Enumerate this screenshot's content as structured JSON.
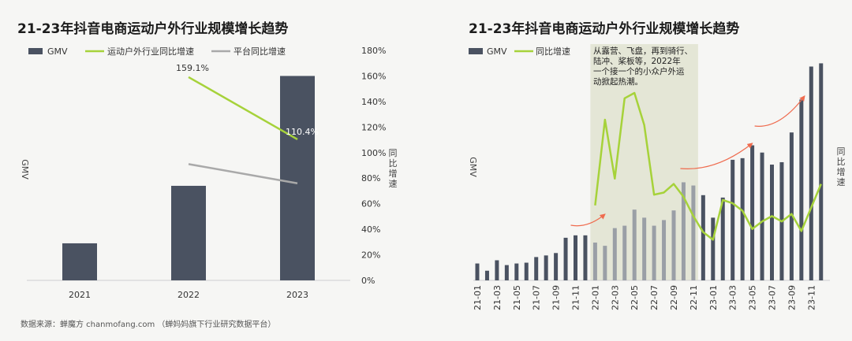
{
  "left": {
    "title": "21-23年抖音电商运动户外行业规模增长趋势",
    "legend": {
      "gmv": "GMV",
      "industry": "运动户外行业同比增速",
      "platform": "平台同比增速"
    },
    "ylabel_left": "GMV",
    "ylabel_right": "同比增速"
  },
  "right": {
    "title": "21-23年抖音电商运动户外行业规模增长趋势",
    "legend": {
      "gmv": "GMV",
      "growth": "同比增速"
    },
    "ylabel_left": "GMV",
    "ylabel_right": "同比增速",
    "annotation": [
      "从露营、飞盘，再到骑行、",
      "陆冲、桨板等，2022年",
      "一个接一个的小众户外运",
      "动掀起热潮。"
    ]
  },
  "source": "数据来源：蝉魔方 chanmofang.com （蝉妈妈旗下行业研究数据平台）",
  "colors": {
    "bar": "#4a5261",
    "industry_line": "#a6d23a",
    "platform_line": "#a9a9a9",
    "bar_faded": "#9a9fa6",
    "arrow": "#ef6b4e",
    "highlight": "#e4e6d6"
  },
  "chart_data": [
    {
      "type": "bar",
      "categories": [
        "2021",
        "2022",
        "2023"
      ],
      "series": [
        {
          "name": "GMV",
          "type": "bar",
          "values": [
            29,
            74,
            160
          ]
        },
        {
          "name": "运动户外行业同比增速",
          "type": "line",
          "axis": "right",
          "values": [
            null,
            159.1,
            110.4
          ]
        },
        {
          "name": "平台同比增速",
          "type": "line",
          "axis": "right",
          "values": [
            null,
            91,
            76
          ]
        }
      ],
      "y2_ticks": [
        "0%",
        "20%",
        "40%",
        "60%",
        "80%",
        "100%",
        "120%",
        "140%",
        "160%",
        "180%"
      ],
      "y2lim": [
        0,
        180
      ],
      "data_labels": [
        "159.1%",
        "110.4%"
      ]
    },
    {
      "type": "bar",
      "categories": [
        "21-01",
        "21-02",
        "21-03",
        "21-04",
        "21-05",
        "21-06",
        "21-07",
        "21-08",
        "21-09",
        "21-10",
        "21-11",
        "21-12",
        "22-01",
        "22-02",
        "22-03",
        "22-04",
        "22-05",
        "22-06",
        "22-07",
        "22-08",
        "22-09",
        "22-10",
        "22-11",
        "22-12",
        "23-01",
        "23-02",
        "23-03",
        "23-04",
        "23-05",
        "23-06",
        "23-07",
        "23-08",
        "23-09",
        "23-10",
        "23-11",
        "23-12"
      ],
      "tick_labels": [
        "21-01",
        "21-03",
        "21-05",
        "21-07",
        "21-09",
        "21-11",
        "22-01",
        "22-03",
        "22-05",
        "22-07",
        "22-09",
        "22-11",
        "23-01",
        "23-03",
        "23-05",
        "23-07",
        "23-09",
        "23-11"
      ],
      "series": [
        {
          "name": "GMV",
          "type": "bar",
          "values": [
            21,
            12,
            25,
            19,
            21,
            22,
            29,
            31,
            34,
            53,
            56,
            56,
            47,
            43,
            65,
            68,
            88,
            78,
            68,
            75,
            87,
            122,
            118,
            106,
            78,
            103,
            150,
            152,
            168,
            159,
            144,
            147,
            184,
            225,
            266,
            270
          ]
        },
        {
          "name": "同比增速",
          "type": "line",
          "axis": "right",
          "values": [
            null,
            null,
            null,
            null,
            null,
            null,
            null,
            null,
            null,
            null,
            null,
            null,
            70,
            150,
            95,
            170,
            175,
            145,
            80,
            82,
            90,
            78,
            60,
            45,
            38,
            75,
            72,
            65,
            48,
            55,
            60,
            55,
            62,
            46,
            68,
            90
          ]
        }
      ],
      "highlight_range": [
        "22-01",
        "22-11"
      ]
    }
  ]
}
